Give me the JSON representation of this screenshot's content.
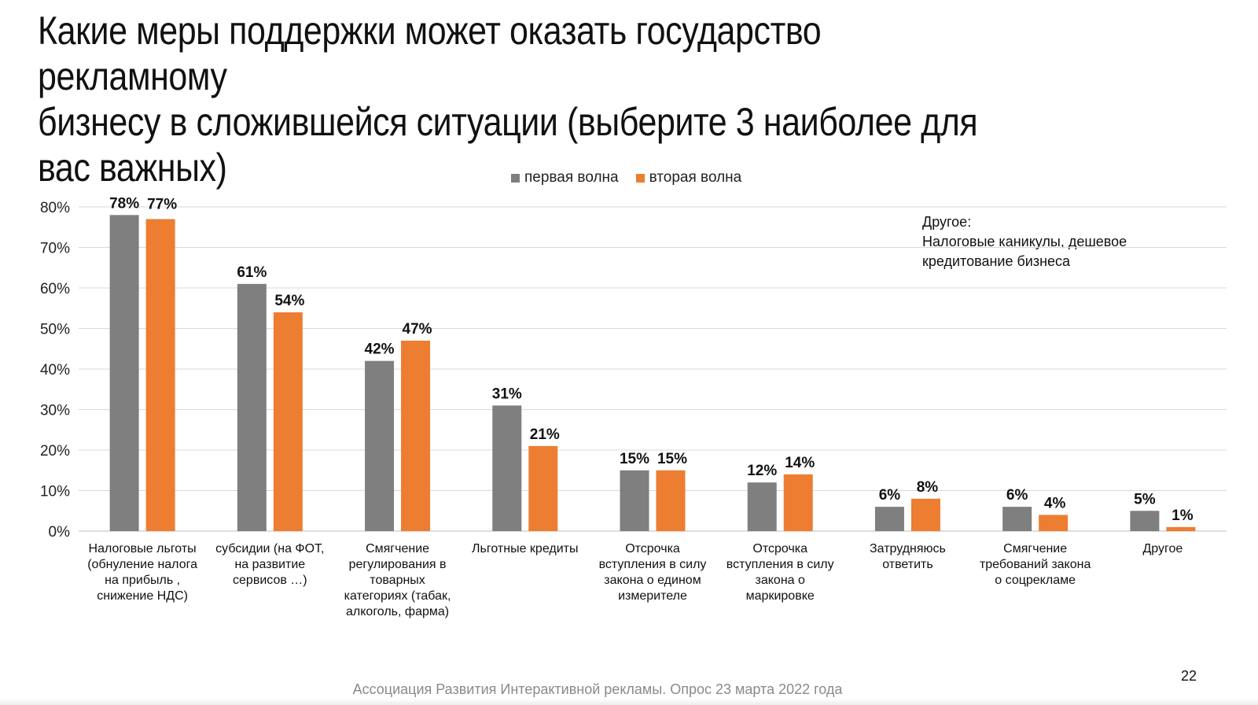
{
  "title_lines": [
    "Какие меры поддержки может оказать государство рекламному",
    "бизнесу в сложившейся ситуации (выберите 3 наиболее для",
    "вас важных)"
  ],
  "note": {
    "heading": "Другое:",
    "lines": [
      "Налоговые каникулы, дешевое",
      "кредитование бизнеса"
    ]
  },
  "footer": "Ассоциация Развития Интерактивной рекламы. Опрос 23 марта 2022 года",
  "page_number": "22",
  "colors": {
    "first_wave": "#7f7f7f",
    "second_wave": "#ed7d31",
    "grid": "#d9d9d9"
  },
  "chart_data": {
    "type": "bar",
    "ylim": [
      0,
      80
    ],
    "y_ticks": [
      "0%",
      "10%",
      "20%",
      "30%",
      "40%",
      "50%",
      "60%",
      "70%",
      "80%"
    ],
    "legend_position": "top-center",
    "grid": true,
    "categories": [
      [
        "Налоговые льготы",
        "(обнуление налога",
        "на прибыль ,",
        "снижение НДС)"
      ],
      [
        "субсидии (на ФОТ,",
        "на развитие",
        "сервисов …)"
      ],
      [
        "Смягчение",
        "регулирования в",
        "товарных",
        "категориях (табак,",
        "алкоголь, фарма)"
      ],
      [
        "Льготные кредиты"
      ],
      [
        "Отсрочка",
        "вступления в силу",
        "закона о едином",
        "измерителе"
      ],
      [
        "Отсрочка",
        "вступления в силу",
        "закона о",
        "маркировке"
      ],
      [
        "Затрудняюсь",
        "ответить"
      ],
      [
        "Смягчение",
        "требований закона",
        "о соцрекламе"
      ],
      [
        "Другое"
      ]
    ],
    "series": [
      {
        "name": "первая волна",
        "values": [
          78,
          61,
          42,
          31,
          15,
          12,
          6,
          6,
          5
        ],
        "labels": [
          "78%",
          "61%",
          "42%",
          "31%",
          "15%",
          "12%",
          "6%",
          "6%",
          "5%"
        ]
      },
      {
        "name": "вторая волна",
        "values": [
          77,
          54,
          47,
          21,
          15,
          14,
          8,
          4,
          1
        ],
        "labels": [
          "77%",
          "54%",
          "47%",
          "21%",
          "15%",
          "14%",
          "8%",
          "4%",
          "1%"
        ]
      }
    ]
  }
}
